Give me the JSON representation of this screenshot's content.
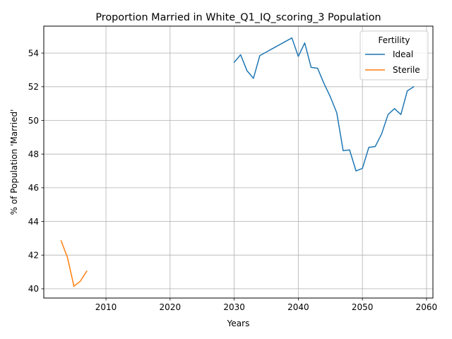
{
  "chart_data": {
    "type": "line",
    "title": "Proportion Married in White_Q1_IQ_scoring_3 Population",
    "xlabel": "Years",
    "ylabel": "% of Population 'Married'",
    "xlim": [
      2000.3,
      2061
    ],
    "ylim": [
      39.45,
      55.6
    ],
    "xticks": [
      2010,
      2020,
      2030,
      2040,
      2050,
      2060
    ],
    "yticks": [
      40,
      42,
      44,
      46,
      48,
      50,
      52,
      54
    ],
    "grid": true,
    "legend": {
      "title": "Fertility",
      "position": "top-right"
    },
    "series": [
      {
        "name": "Ideal",
        "color": "#1f77b4",
        "x": [
          2030,
          2031,
          2032,
          2033,
          2034,
          2039,
          2040,
          2041,
          2042,
          2043,
          2044,
          2045,
          2046,
          2047,
          2048,
          2049,
          2050,
          2051,
          2052,
          2053,
          2054,
          2055,
          2056,
          2057,
          2058
        ],
        "y": [
          53.45,
          53.9,
          52.95,
          52.5,
          53.85,
          54.9,
          53.8,
          54.6,
          53.15,
          53.1,
          52.2,
          51.4,
          50.45,
          48.2,
          48.25,
          47.0,
          47.15,
          48.4,
          48.45,
          49.2,
          50.35,
          50.7,
          50.35,
          51.75,
          52.0
        ]
      },
      {
        "name": "Sterile",
        "color": "#ff7f0e",
        "x": [
          2003,
          2004,
          2005,
          2006,
          2007
        ],
        "y": [
          42.85,
          41.85,
          40.15,
          40.45,
          41.05
        ]
      }
    ]
  }
}
